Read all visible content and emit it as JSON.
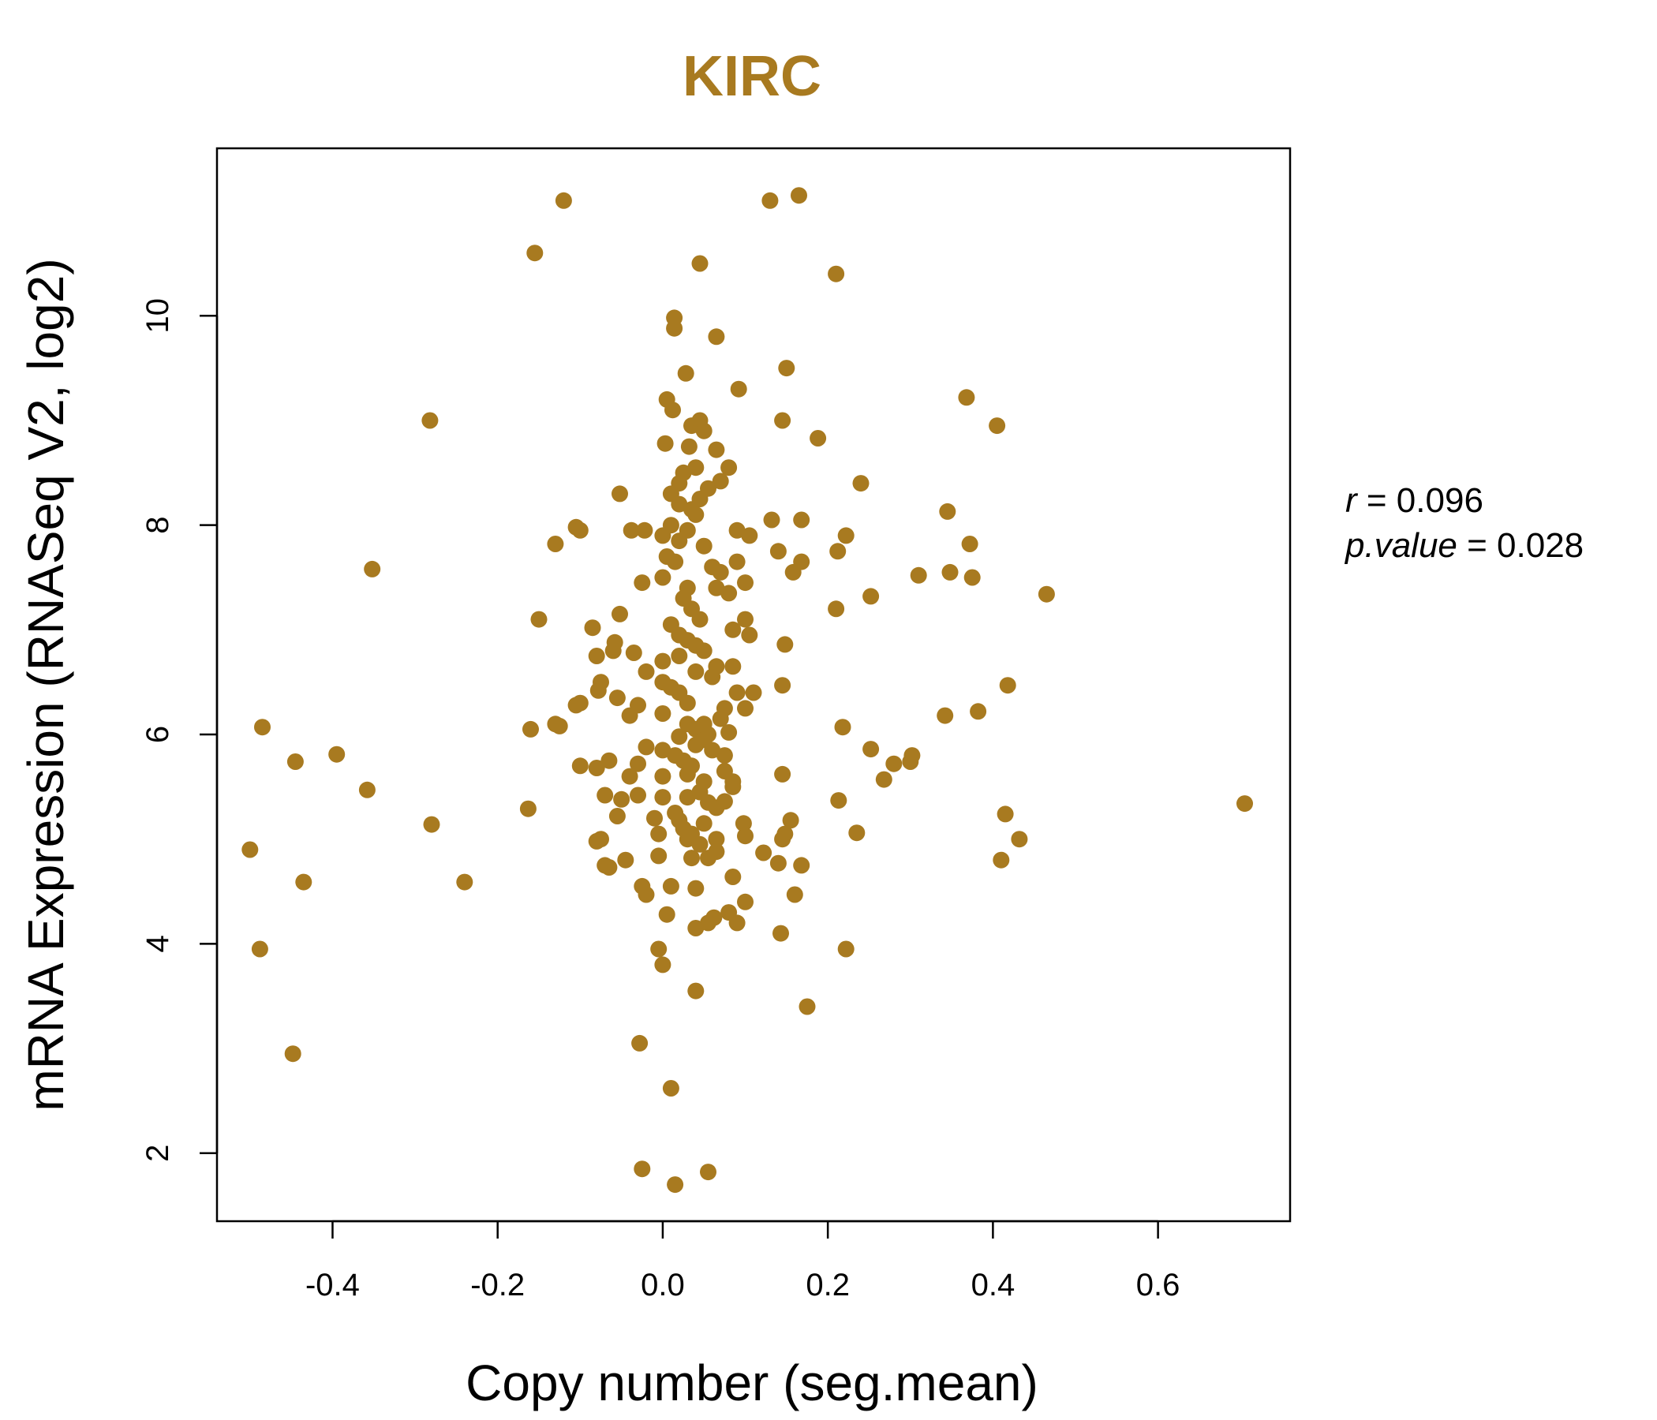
{
  "chart_data": {
    "type": "scatter",
    "title": "KIRC",
    "xlabel": "Copy number (seg.mean)",
    "ylabel": "mRNA Expression (RNASeq V2, log2)",
    "xlim": [
      -0.54,
      0.76
    ],
    "ylim": [
      1.35,
      11.6
    ],
    "xticks": [
      -0.4,
      -0.2,
      0.0,
      0.2,
      0.4,
      0.6
    ],
    "xtick_labels": [
      "-0.4",
      "-0.2",
      "0.0",
      "0.2",
      "0.4",
      "0.6"
    ],
    "yticks": [
      2,
      4,
      6,
      8,
      10
    ],
    "ytick_labels": [
      "2",
      "4",
      "6",
      "8",
      "10"
    ],
    "grid": false,
    "point_color": "#A87A20",
    "stats": {
      "r_symbol": "r",
      "r_eq": "= 0.096",
      "p_symbol": "p.value",
      "p_eq": "= 0.028"
    },
    "points": [
      [
        -0.12,
        11.1
      ],
      [
        -0.155,
        10.6
      ],
      [
        0.045,
        10.5
      ],
      [
        0.21,
        10.4
      ],
      [
        0.13,
        11.1
      ],
      [
        0.165,
        11.15
      ],
      [
        0.014,
        9.98
      ],
      [
        0.014,
        9.88
      ],
      [
        0.065,
        9.8
      ],
      [
        0.15,
        9.5
      ],
      [
        0.028,
        9.45
      ],
      [
        0.092,
        9.3
      ],
      [
        0.005,
        9.2
      ],
      [
        0.368,
        9.22
      ],
      [
        0.145,
        9.0
      ],
      [
        0.405,
        8.95
      ],
      [
        0.012,
        9.1
      ],
      [
        0.035,
        8.95
      ],
      [
        0.045,
        9.0
      ],
      [
        0.05,
        8.9
      ],
      [
        0.188,
        8.83
      ],
      [
        0.003,
        8.78
      ],
      [
        0.032,
        8.75
      ],
      [
        0.065,
        8.72
      ],
      [
        0.04,
        8.55
      ],
      [
        0.08,
        8.55
      ],
      [
        0.07,
        8.42
      ],
      [
        0.24,
        8.4
      ],
      [
        -0.282,
        9.0
      ],
      [
        0.025,
        8.5
      ],
      [
        0.01,
        8.3
      ],
      [
        -0.052,
        8.3
      ],
      [
        0.02,
        8.2
      ],
      [
        0.035,
        8.15
      ],
      [
        0.345,
        8.13
      ],
      [
        0.132,
        8.05
      ],
      [
        0.168,
        8.05
      ],
      [
        -0.105,
        7.98
      ],
      [
        -0.1,
        7.95
      ],
      [
        0.09,
        7.95
      ],
      [
        0.105,
        7.9
      ],
      [
        0.222,
        7.9
      ],
      [
        0.372,
        7.82
      ],
      [
        -0.13,
        7.82
      ],
      [
        0.0,
        7.9
      ],
      [
        0.02,
        7.85
      ],
      [
        -0.038,
        7.95
      ],
      [
        -0.022,
        7.95
      ],
      [
        0.212,
        7.75
      ],
      [
        0.14,
        7.75
      ],
      [
        0.168,
        7.65
      ],
      [
        0.158,
        7.55
      ],
      [
        0.09,
        7.65
      ],
      [
        -0.352,
        7.58
      ],
      [
        0.31,
        7.52
      ],
      [
        0.348,
        7.55
      ],
      [
        0.375,
        7.5
      ],
      [
        0.465,
        7.34
      ],
      [
        0.252,
        7.32
      ],
      [
        0.1,
        7.45
      ],
      [
        -0.025,
        7.45
      ],
      [
        0.0,
        7.5
      ],
      [
        0.03,
        7.4
      ],
      [
        0.065,
        7.4
      ],
      [
        0.21,
        7.2
      ],
      [
        0.1,
        7.1
      ],
      [
        -0.052,
        7.15
      ],
      [
        -0.15,
        7.1
      ],
      [
        -0.085,
        7.02
      ],
      [
        0.105,
        6.95
      ],
      [
        0.148,
        6.86
      ],
      [
        -0.058,
        6.88
      ],
      [
        -0.06,
        6.8
      ],
      [
        -0.08,
        6.75
      ],
      [
        -0.035,
        6.78
      ],
      [
        -0.02,
        6.6
      ],
      [
        0.0,
        6.7
      ],
      [
        0.02,
        6.75
      ],
      [
        0.04,
        6.6
      ],
      [
        0.065,
        6.65
      ],
      [
        0.085,
        6.65
      ],
      [
        0.11,
        6.4
      ],
      [
        0.145,
        6.47
      ],
      [
        0.418,
        6.47
      ],
      [
        -0.075,
        6.5
      ],
      [
        -0.078,
        6.42
      ],
      [
        -0.1,
        6.3
      ],
      [
        -0.105,
        6.28
      ],
      [
        -0.055,
        6.35
      ],
      [
        -0.03,
        6.28
      ],
      [
        -0.04,
        6.18
      ],
      [
        0.0,
        6.2
      ],
      [
        0.03,
        6.3
      ],
      [
        0.05,
        6.1
      ],
      [
        0.075,
        6.25
      ],
      [
        0.1,
        6.25
      ],
      [
        0.382,
        6.22
      ],
      [
        0.342,
        6.18
      ],
      [
        -0.125,
        6.08
      ],
      [
        -0.13,
        6.1
      ],
      [
        -0.16,
        6.05
      ],
      [
        -0.485,
        6.07
      ],
      [
        0.218,
        6.07
      ],
      [
        0.08,
        6.02
      ],
      [
        0.055,
        6.0
      ],
      [
        0.02,
        5.98
      ],
      [
        -0.02,
        5.88
      ],
      [
        0.0,
        5.85
      ],
      [
        0.04,
        5.9
      ],
      [
        0.075,
        5.8
      ],
      [
        0.252,
        5.86
      ],
      [
        0.302,
        5.8
      ],
      [
        0.3,
        5.74
      ],
      [
        0.28,
        5.72
      ],
      [
        -0.395,
        5.81
      ],
      [
        -0.445,
        5.74
      ],
      [
        -0.065,
        5.75
      ],
      [
        -0.1,
        5.7
      ],
      [
        -0.08,
        5.68
      ],
      [
        -0.03,
        5.72
      ],
      [
        -0.04,
        5.6
      ],
      [
        0.0,
        5.6
      ],
      [
        0.03,
        5.62
      ],
      [
        0.05,
        5.55
      ],
      [
        0.085,
        5.55
      ],
      [
        0.145,
        5.62
      ],
      [
        0.268,
        5.57
      ],
      [
        -0.358,
        5.47
      ],
      [
        -0.07,
        5.42
      ],
      [
        -0.05,
        5.38
      ],
      [
        -0.03,
        5.42
      ],
      [
        0.0,
        5.4
      ],
      [
        0.03,
        5.4
      ],
      [
        0.075,
        5.36
      ],
      [
        0.213,
        5.37
      ],
      [
        0.705,
        5.34
      ],
      [
        0.415,
        5.24
      ],
      [
        -0.163,
        5.29
      ],
      [
        -0.055,
        5.22
      ],
      [
        -0.01,
        5.2
      ],
      [
        0.02,
        5.18
      ],
      [
        0.05,
        5.15
      ],
      [
        0.098,
        5.15
      ],
      [
        0.155,
        5.18
      ],
      [
        -0.28,
        5.14
      ],
      [
        -0.075,
        5.0
      ],
      [
        -0.08,
        4.98
      ],
      [
        -0.005,
        5.05
      ],
      [
        0.03,
        5.0
      ],
      [
        0.1,
        5.03
      ],
      [
        0.148,
        5.05
      ],
      [
        0.145,
        5.0
      ],
      [
        0.235,
        5.06
      ],
      [
        0.432,
        5.0
      ],
      [
        -0.5,
        4.9
      ],
      [
        -0.07,
        4.75
      ],
      [
        -0.045,
        4.8
      ],
      [
        -0.005,
        4.84
      ],
      [
        0.035,
        4.82
      ],
      [
        0.055,
        4.82
      ],
      [
        0.065,
        4.88
      ],
      [
        0.122,
        4.87
      ],
      [
        0.14,
        4.77
      ],
      [
        0.168,
        4.75
      ],
      [
        0.41,
        4.8
      ],
      [
        -0.065,
        4.73
      ],
      [
        -0.025,
        4.55
      ],
      [
        -0.02,
        4.47
      ],
      [
        0.01,
        4.55
      ],
      [
        0.04,
        4.53
      ],
      [
        0.085,
        4.64
      ],
      [
        -0.435,
        4.59
      ],
      [
        -0.24,
        4.59
      ],
      [
        0.16,
        4.47
      ],
      [
        0.1,
        4.4
      ],
      [
        0.005,
        4.28
      ],
      [
        0.062,
        4.25
      ],
      [
        0.08,
        4.3
      ],
      [
        0.04,
        4.15
      ],
      [
        0.055,
        4.2
      ],
      [
        0.09,
        4.2
      ],
      [
        0.143,
        4.1
      ],
      [
        -0.488,
        3.95
      ],
      [
        0.222,
        3.95
      ],
      [
        -0.005,
        3.95
      ],
      [
        0.0,
        3.8
      ],
      [
        0.04,
        3.55
      ],
      [
        0.175,
        3.4
      ],
      [
        -0.448,
        2.95
      ],
      [
        -0.028,
        3.05
      ],
      [
        0.01,
        2.62
      ],
      [
        -0.025,
        1.85
      ],
      [
        0.055,
        1.82
      ],
      [
        0.015,
        1.7
      ],
      [
        0.005,
        7.7
      ],
      [
        0.015,
        7.65
      ],
      [
        0.025,
        7.3
      ],
      [
        0.035,
        7.2
      ],
      [
        0.045,
        7.1
      ],
      [
        0.01,
        7.05
      ],
      [
        0.02,
        6.95
      ],
      [
        0.03,
        6.9
      ],
      [
        0.04,
        6.85
      ],
      [
        0.05,
        6.8
      ],
      [
        0.06,
        6.55
      ],
      [
        0.0,
        6.5
      ],
      [
        0.01,
        6.45
      ],
      [
        0.02,
        6.4
      ],
      [
        0.03,
        6.1
      ],
      [
        0.04,
        6.05
      ],
      [
        0.05,
        5.95
      ],
      [
        0.015,
        5.8
      ],
      [
        0.025,
        5.75
      ],
      [
        0.035,
        5.7
      ],
      [
        0.045,
        5.45
      ],
      [
        0.055,
        5.35
      ],
      [
        0.065,
        5.3
      ],
      [
        0.015,
        5.25
      ],
      [
        0.025,
        5.1
      ],
      [
        0.035,
        5.05
      ],
      [
        0.045,
        4.95
      ],
      [
        0.01,
        8.0
      ],
      [
        0.03,
        7.95
      ],
      [
        0.05,
        7.8
      ],
      [
        0.06,
        7.6
      ],
      [
        0.07,
        7.55
      ],
      [
        0.08,
        7.35
      ],
      [
        0.085,
        7.0
      ],
      [
        0.09,
        6.4
      ],
      [
        0.07,
        6.15
      ],
      [
        0.06,
        5.85
      ],
      [
        0.075,
        5.65
      ],
      [
        0.085,
        5.5
      ],
      [
        0.065,
        5.0
      ],
      [
        0.045,
        8.25
      ],
      [
        0.055,
        8.35
      ],
      [
        0.02,
        8.4
      ],
      [
        0.04,
        8.1
      ]
    ]
  }
}
